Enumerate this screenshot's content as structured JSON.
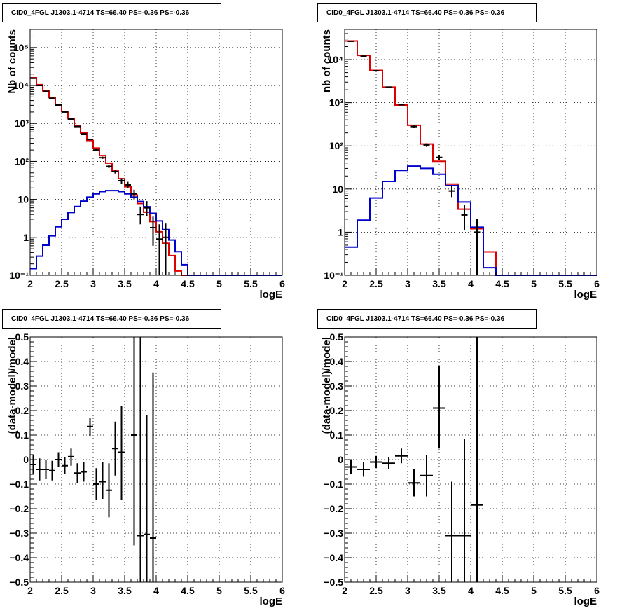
{
  "panels": [
    {
      "title": "CID0_4FGL J1303.1-4714 TS=66.40 PS=-0.36 PS=-0.36"
    },
    {
      "title": "CID0_4FGL J1303.1-4714 TS=66.40 PS=-0.36 PS=-0.36"
    },
    {
      "title": "CID0_4FGL J1303.1-4714 TS=66.40 PS=-0.36 PS=-0.36"
    },
    {
      "title": "CID0_4FGL J1303.1-4714 TS=66.40 PS=-0.36 PS=-0.36"
    }
  ],
  "colors": {
    "data": "#000000",
    "model_total": "#dd0000",
    "model_source": "#0000cc"
  },
  "chart_data": [
    {
      "type": "line",
      "title": "CID0_4FGL J1303.1-4714 TS=66.40 PS=-0.36 PS=-0.36",
      "xlabel": "logE",
      "ylabel": "Nb of counts",
      "xlim": [
        2,
        6
      ],
      "ylim": [
        0.1,
        300000
      ],
      "yscale": "log",
      "grid": true,
      "xticks": [
        "2",
        "2.5",
        "3",
        "3.5",
        "4",
        "4.5",
        "5",
        "5.5",
        "6"
      ],
      "yticks": [
        "10⁻¹",
        "1",
        "10",
        "10²",
        "10³",
        "10⁴",
        "10⁵"
      ],
      "bin_edges": [
        2.0,
        2.1,
        2.2,
        2.3,
        2.4,
        2.5,
        2.6,
        2.7,
        2.8,
        2.9,
        3.0,
        3.1,
        3.2,
        3.3,
        3.4,
        3.5,
        3.6,
        3.7,
        3.8,
        3.9,
        4.0,
        4.1,
        4.2,
        4.3,
        4.4,
        4.5,
        4.6,
        4.7,
        4.8,
        4.9,
        5.0,
        5.1,
        5.2,
        5.3,
        5.4,
        5.5,
        5.6,
        5.7,
        5.8,
        5.9,
        6.0
      ],
      "series": [
        {
          "kind": "step",
          "color": "#dd0000",
          "values": [
            16000,
            10500,
            7200,
            4800,
            3100,
            2050,
            1330,
            870,
            560,
            355,
            225,
            142,
            90,
            56,
            35,
            21.5,
            13,
            7.8,
            4.6,
            2.6,
            1.4,
            0.7,
            0.33,
            0.13,
            0.1,
            0.1,
            0.1,
            0.1,
            0.1,
            0.1,
            0.1,
            0.1,
            0.1,
            0.1,
            0.1,
            0.1,
            0.1,
            0.1,
            0.1,
            0.1
          ]
        },
        {
          "kind": "step",
          "color": "#0000cc",
          "values": [
            0.15,
            0.32,
            0.62,
            1.1,
            1.9,
            3.0,
            4.5,
            6.5,
            9,
            11.5,
            14,
            16,
            17,
            17,
            16,
            14,
            11.5,
            8.8,
            6.4,
            4.3,
            2.7,
            1.6,
            0.85,
            0.42,
            0.19,
            0.1,
            0.1,
            0.1,
            0.1,
            0.1,
            0.1,
            0.1,
            0.1,
            0.1,
            0.1,
            0.1,
            0.1,
            0.1,
            0.1,
            0.1
          ]
        },
        {
          "kind": "points",
          "color": "#000000",
          "x": [
            2.05,
            2.15,
            2.25,
            2.35,
            2.45,
            2.55,
            2.65,
            2.75,
            2.85,
            2.95,
            3.05,
            3.15,
            3.25,
            3.35,
            3.45,
            3.55,
            3.65,
            3.75,
            3.85,
            3.95,
            4.05,
            4.15
          ],
          "y": [
            15500,
            10000,
            7000,
            4600,
            3050,
            2000,
            1300,
            830,
            530,
            380,
            200,
            125,
            74,
            54,
            31,
            24,
            14,
            4,
            6,
            1.8,
            0.9,
            1.0
          ],
          "lo": [
            15200,
            9800,
            6850,
            4500,
            2990,
            1950,
            1270,
            800,
            510,
            365,
            190,
            117,
            67,
            48,
            26,
            19.5,
            10,
            2.2,
            3.6,
            0.6,
            0.1,
            0.1
          ],
          "hi": [
            15800,
            10200,
            7150,
            4700,
            3110,
            2050,
            1330,
            860,
            550,
            395,
            210,
            133,
            82,
            60,
            36,
            29,
            18,
            6.5,
            9,
            3.5,
            2.2,
            2.3
          ]
        }
      ]
    },
    {
      "type": "line",
      "title": "CID0_4FGL J1303.1-4714 TS=66.40 PS=-0.36 PS=-0.36",
      "xlabel": "logE",
      "ylabel": "nb of counts",
      "xlim": [
        2,
        6
      ],
      "ylim": [
        0.1,
        50000
      ],
      "yscale": "log",
      "grid": true,
      "xticks": [
        "2",
        "2.5",
        "3",
        "3.5",
        "4",
        "4.5",
        "5",
        "5.5",
        "6"
      ],
      "yticks": [
        "10⁻¹",
        "1",
        "10",
        "10²",
        "10³",
        "10⁴"
      ],
      "bin_edges": [
        2.0,
        2.2,
        2.4,
        2.6,
        2.8,
        3.0,
        3.2,
        3.4,
        3.6,
        3.8,
        4.0,
        4.2,
        4.4,
        4.6,
        4.8,
        5.0,
        5.2,
        5.4,
        5.6,
        5.8,
        6.0
      ],
      "series": [
        {
          "kind": "step",
          "color": "#dd0000",
          "values": [
            27000,
            12500,
            5600,
            2300,
            880,
            300,
            110,
            44,
            13,
            3.4,
            1.2,
            0.35,
            0.1,
            0.1,
            0.1,
            0.1,
            0.1,
            0.1,
            0.1,
            0.1
          ]
        },
        {
          "kind": "step",
          "color": "#0000cc",
          "values": [
            0.45,
            1.9,
            6.2,
            15,
            27,
            34,
            30,
            22,
            12,
            5,
            1.3,
            0.15,
            0.1,
            0.1,
            0.1,
            0.1,
            0.1,
            0.1,
            0.1,
            0.1
          ]
        },
        {
          "kind": "points",
          "color": "#000000",
          "x": [
            2.1,
            2.3,
            2.5,
            2.7,
            2.9,
            3.1,
            3.3,
            3.5,
            3.7,
            3.9,
            4.1
          ],
          "y": [
            26500,
            12000,
            5500,
            2300,
            900,
            280,
            105,
            54,
            9,
            2.5,
            1.0
          ],
          "lo": [
            26200,
            11800,
            5400,
            2250,
            870,
            265,
            95,
            47,
            6.5,
            1.1,
            0.1
          ],
          "hi": [
            26800,
            12200,
            5600,
            2350,
            930,
            300,
            115,
            62,
            12,
            4.2,
            2.0
          ]
        }
      ]
    },
    {
      "type": "scatter",
      "title": "CID0_4FGL J1303.1-4714 TS=66.40 PS=-0.36 PS=-0.36",
      "xlabel": "logE",
      "ylabel": "(data-model)/model",
      "xlim": [
        2,
        6
      ],
      "ylim": [
        -0.5,
        0.5
      ],
      "grid": true,
      "xticks": [
        "2",
        "2.5",
        "3",
        "3.5",
        "4",
        "4.5",
        "5",
        "5.5",
        "6"
      ],
      "yticks": [
        "−0.5",
        "−0.4",
        "−0.3",
        "−0.2",
        "−0.1",
        "0",
        "0.1",
        "0.2",
        "0.3",
        "0.4",
        "0.5"
      ],
      "series": [
        {
          "kind": "errorbars",
          "color": "#000000",
          "x": [
            2.05,
            2.15,
            2.25,
            2.35,
            2.45,
            2.55,
            2.65,
            2.75,
            2.85,
            2.95,
            3.05,
            3.15,
            3.25,
            3.35,
            3.45,
            3.65,
            3.75,
            3.85,
            3.95
          ],
          "y": [
            -0.02,
            -0.04,
            -0.04,
            -0.045,
            0.0,
            -0.025,
            0.012,
            -0.055,
            -0.05,
            0.135,
            -0.1,
            -0.09,
            -0.125,
            0.045,
            0.03,
            0.1,
            -0.31,
            -0.305,
            -0.32
          ],
          "lo": [
            -0.06,
            -0.085,
            -0.08,
            -0.085,
            -0.03,
            -0.06,
            -0.025,
            -0.095,
            -0.09,
            0.095,
            -0.165,
            -0.16,
            -0.235,
            -0.065,
            -0.165,
            -0.35,
            -0.7,
            -0.78,
            -0.99
          ],
          "hi": [
            0.02,
            0.005,
            0.0,
            -0.005,
            0.03,
            0.01,
            0.045,
            -0.015,
            -0.01,
            0.17,
            -0.035,
            -0.01,
            -0.015,
            0.155,
            0.22,
            0.5,
            0.5,
            0.18,
            0.355
          ],
          "xerr": 0.05
        }
      ]
    },
    {
      "type": "scatter",
      "title": "CID0_4FGL J1303.1-4714 TS=66.40 PS=-0.36 PS=-0.36",
      "xlabel": "logE",
      "ylabel": "(data-model)/model",
      "xlim": [
        2,
        6
      ],
      "ylim": [
        -0.5,
        0.5
      ],
      "grid": true,
      "xticks": [
        "2",
        "2.5",
        "3",
        "3.5",
        "4",
        "4.5",
        "5",
        "5.5",
        "6"
      ],
      "yticks": [
        "−0.5",
        "−0.4",
        "−0.3",
        "−0.2",
        "−0.1",
        "0",
        "0.1",
        "0.2",
        "0.3",
        "0.4",
        "0.5"
      ],
      "series": [
        {
          "kind": "errorbars",
          "color": "#000000",
          "x": [
            2.1,
            2.3,
            2.5,
            2.7,
            2.9,
            3.1,
            3.3,
            3.5,
            3.7,
            3.9,
            4.1
          ],
          "y": [
            -0.03,
            -0.04,
            -0.01,
            -0.015,
            0.015,
            -0.095,
            -0.065,
            0.21,
            -0.31,
            -0.31,
            -0.185
          ],
          "lo": [
            -0.06,
            -0.07,
            -0.035,
            -0.04,
            -0.015,
            -0.15,
            -0.15,
            0.045,
            -0.58,
            -0.7,
            -1.0
          ],
          "hi": [
            0.0,
            -0.01,
            0.015,
            0.01,
            0.045,
            -0.04,
            0.02,
            0.38,
            -0.09,
            0.085,
            0.5
          ],
          "xerr": 0.1
        }
      ]
    }
  ]
}
